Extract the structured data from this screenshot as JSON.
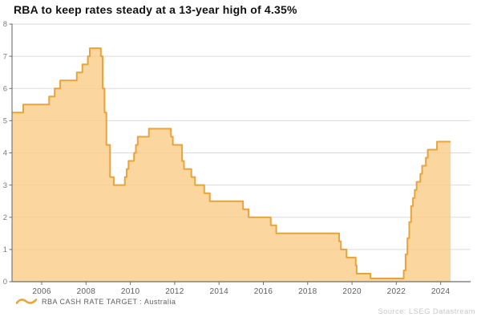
{
  "title": "RBA to keep rates steady at a 13-year high of 4.35%",
  "legend": {
    "label": "RBA CASH RATE TARGET : Australia"
  },
  "source": "Source: LSEG Datastream",
  "chart_data": {
    "type": "area",
    "step": true,
    "title": "RBA to keep rates steady at a 13-year high of 4.35%",
    "series_name": "RBA CASH RATE TARGET : Australia",
    "unit": "percent",
    "x_unit": "decimal_year",
    "xlim": [
      2004.66,
      2025.35
    ],
    "ylim": [
      0,
      8
    ],
    "xticks": [
      2006,
      2008,
      2010,
      2012,
      2014,
      2016,
      2018,
      2020,
      2022,
      2024
    ],
    "yticks": [
      0,
      1,
      2,
      3,
      4,
      5,
      6,
      7,
      8
    ],
    "grid": "horizontal",
    "legend_position": "bottom-left",
    "points": [
      [
        2004.66,
        5.25
      ],
      [
        2005.167,
        5.5
      ],
      [
        2006.333,
        5.75
      ],
      [
        2006.583,
        6.0
      ],
      [
        2006.833,
        6.25
      ],
      [
        2007.583,
        6.5
      ],
      [
        2007.833,
        6.75
      ],
      [
        2008.083,
        7.0
      ],
      [
        2008.167,
        7.25
      ],
      [
        2008.667,
        7.0
      ],
      [
        2008.75,
        6.0
      ],
      [
        2008.833,
        5.25
      ],
      [
        2008.917,
        4.25
      ],
      [
        2009.083,
        3.25
      ],
      [
        2009.25,
        3.0
      ],
      [
        2009.75,
        3.25
      ],
      [
        2009.833,
        3.5
      ],
      [
        2009.917,
        3.75
      ],
      [
        2010.167,
        4.0
      ],
      [
        2010.25,
        4.25
      ],
      [
        2010.333,
        4.5
      ],
      [
        2010.833,
        4.75
      ],
      [
        2011.833,
        4.5
      ],
      [
        2011.917,
        4.25
      ],
      [
        2012.333,
        3.75
      ],
      [
        2012.417,
        3.5
      ],
      [
        2012.75,
        3.25
      ],
      [
        2012.917,
        3.0
      ],
      [
        2013.333,
        2.75
      ],
      [
        2013.583,
        2.5
      ],
      [
        2015.083,
        2.25
      ],
      [
        2015.333,
        2.0
      ],
      [
        2016.333,
        1.75
      ],
      [
        2016.583,
        1.5
      ],
      [
        2019.417,
        1.25
      ],
      [
        2019.5,
        1.0
      ],
      [
        2019.75,
        0.75
      ],
      [
        2020.167,
        0.5
      ],
      [
        2020.21,
        0.25
      ],
      [
        2020.833,
        0.1
      ],
      [
        2022.333,
        0.35
      ],
      [
        2022.417,
        0.85
      ],
      [
        2022.5,
        1.35
      ],
      [
        2022.583,
        1.85
      ],
      [
        2022.667,
        2.35
      ],
      [
        2022.75,
        2.6
      ],
      [
        2022.833,
        2.85
      ],
      [
        2022.917,
        3.1
      ],
      [
        2023.083,
        3.35
      ],
      [
        2023.167,
        3.6
      ],
      [
        2023.333,
        3.85
      ],
      [
        2023.417,
        4.1
      ],
      [
        2023.833,
        4.35
      ],
      [
        2024.45,
        4.35
      ]
    ],
    "colors": {
      "line": "#E8A33C",
      "fill": "rgba(250,205,135,0.8)",
      "grid": "#DBDBDB",
      "axis": "#6E6E6E",
      "x_tick_label": "#5d5d5d",
      "y_tick_label": "#7a7a7a",
      "title": "#111111",
      "legend_text": "#5d5d5d",
      "source_text": "#c9c9c9"
    }
  }
}
